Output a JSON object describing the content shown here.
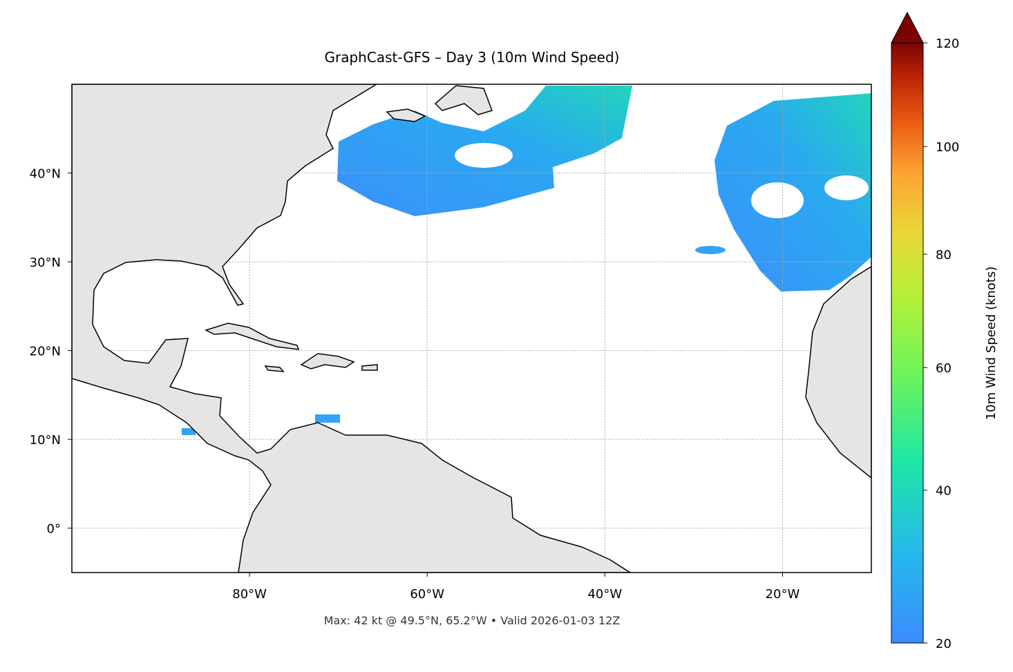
{
  "chart_data": {
    "type": "map",
    "title": "GraphCast-GFS – Day 3 (10m Wind Speed)",
    "note": "Max: 42 kt @ 49.5°N, 65.2°W • Valid 2026-01-03 12Z",
    "xlim": [
      -100,
      -10
    ],
    "ylim": [
      -5,
      50
    ],
    "xticks": [
      {
        "value": -80,
        "label": "80°W"
      },
      {
        "value": -60,
        "label": "60°W"
      },
      {
        "value": -40,
        "label": "40°W"
      },
      {
        "value": -20,
        "label": "20°W"
      }
    ],
    "yticks": [
      {
        "value": 0,
        "label": "0°"
      },
      {
        "value": 10,
        "label": "10°N"
      },
      {
        "value": 20,
        "label": "20°N"
      },
      {
        "value": 30,
        "label": "30°N"
      },
      {
        "value": 40,
        "label": "40°N"
      }
    ],
    "grid": true,
    "colorbar": {
      "label": "10m Wind Speed (knots)",
      "lim": [
        20,
        120
      ],
      "ticks": [
        20,
        40,
        60,
        80,
        100,
        120
      ],
      "scale": "power",
      "gamma": 0.85,
      "extend": "max"
    }
  }
}
